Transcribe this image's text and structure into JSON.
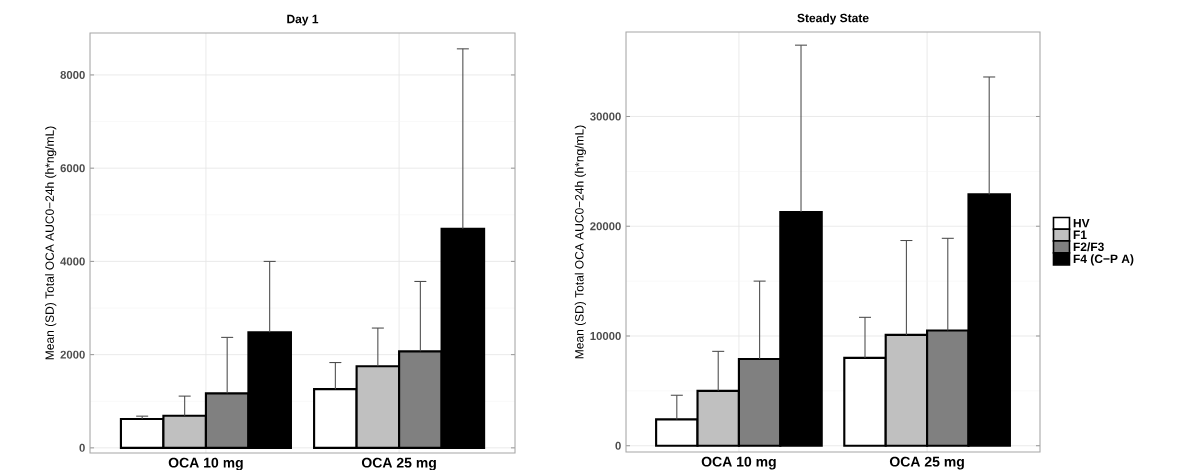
{
  "chart_data": [
    {
      "type": "bar",
      "title": "Day 1",
      "ylabel": "Mean (SD) Total OCA AUC0−24h (h*ng/mL)",
      "categories": [
        "OCA 10 mg",
        "OCA 25 mg"
      ],
      "series": [
        {
          "color": "#ffffff",
          "values": [
            620,
            1260
          ],
          "errors": [
            [
              620,
              680
            ],
            [
              1260,
              1830
            ]
          ]
        },
        {
          "color": "#c0c0c0",
          "values": [
            690,
            1750
          ],
          "errors": [
            [
              690,
              1110
            ],
            [
              1750,
              2570
            ]
          ]
        },
        {
          "color": "#808080",
          "values": [
            1170,
            2070
          ],
          "errors": [
            [
              1170,
              2370
            ],
            [
              2070,
              3570
            ]
          ]
        },
        {
          "color": "#000000",
          "values": [
            2480,
            4700
          ],
          "errors": [
            [
              2480,
              4000
            ],
            [
              4700,
              8560
            ]
          ]
        }
      ],
      "ylim": [
        -110,
        8900
      ],
      "yticks": [
        0,
        2000,
        4000,
        6000,
        8000
      ],
      "grid": true,
      "legend": false
    },
    {
      "type": "bar",
      "title": "Steady State",
      "ylabel": "Mean (SD) Total OCA AUC0−24h (h*ng/mL)",
      "categories": [
        "OCA 10 mg",
        "OCA 25 mg"
      ],
      "series": [
        {
          "name": "HV",
          "color": "#ffffff",
          "values": [
            2400,
            8000
          ],
          "errors": [
            [
              2400,
              4600
            ],
            [
              8000,
              11700
            ]
          ]
        },
        {
          "name": "F1",
          "color": "#c0c0c0",
          "values": [
            5000,
            10100
          ],
          "errors": [
            [
              5000,
              8600
            ],
            [
              10100,
              18700
            ]
          ]
        },
        {
          "name": "F2/F3",
          "color": "#808080",
          "values": [
            7900,
            10500
          ],
          "errors": [
            [
              7900,
              15000
            ],
            [
              10500,
              18900
            ]
          ]
        },
        {
          "name": "F4 (C−P A)",
          "color": "#000000",
          "values": [
            21300,
            22900
          ],
          "errors": [
            [
              21300,
              36500
            ],
            [
              22900,
              33600
            ]
          ]
        }
      ],
      "ylim": [
        -570,
        37700
      ],
      "yticks": [
        0,
        10000,
        20000,
        30000
      ],
      "grid": true,
      "legend": "right"
    }
  ]
}
